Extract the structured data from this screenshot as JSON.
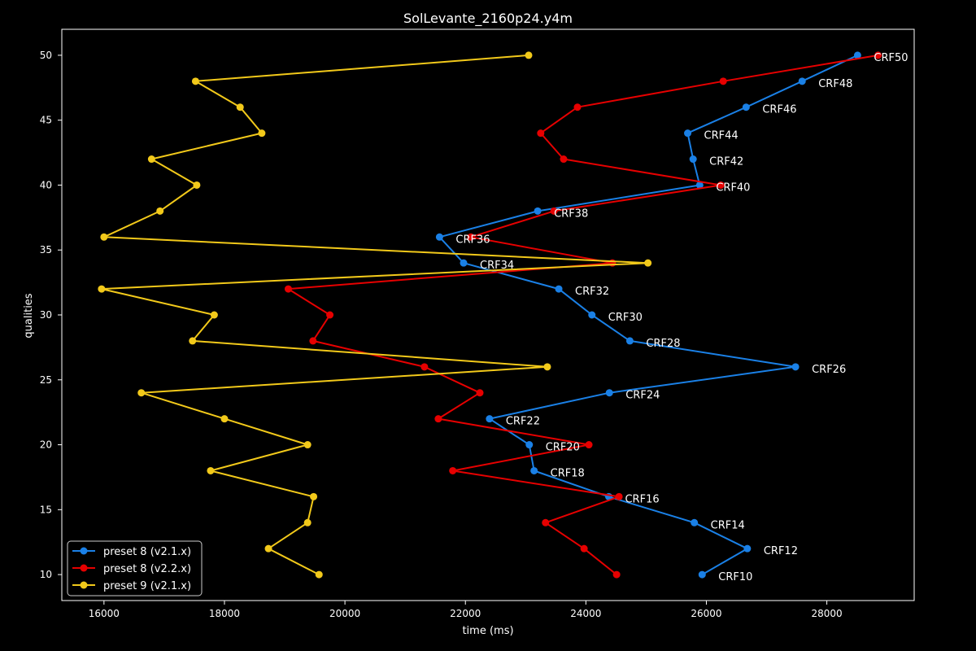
{
  "chart_data": {
    "type": "line",
    "title": "SolLevante_2160p24.y4m",
    "xlabel": "time (ms)",
    "ylabel": "qualities",
    "xlim": [
      15300,
      29450
    ],
    "ylim": [
      8,
      52
    ],
    "xticks": [
      16000,
      18000,
      20000,
      22000,
      24000,
      26000,
      28000
    ],
    "yticks": [
      10,
      15,
      20,
      25,
      30,
      35,
      40,
      45,
      50
    ],
    "grid": false,
    "legend_position": "bottom-left",
    "series": [
      {
        "name": "preset 8 (v2.1.x)",
        "color": "#1a80e6",
        "points": [
          [
            25930,
            10
          ],
          [
            26680,
            12
          ],
          [
            25800,
            14
          ],
          [
            24380,
            16
          ],
          [
            23140,
            18
          ],
          [
            23060,
            20
          ],
          [
            22400,
            22
          ],
          [
            24390,
            24
          ],
          [
            27480,
            26
          ],
          [
            24730,
            28
          ],
          [
            24100,
            30
          ],
          [
            23550,
            32
          ],
          [
            21970,
            34
          ],
          [
            21570,
            36
          ],
          [
            23200,
            38
          ],
          [
            25890,
            40
          ],
          [
            25780,
            42
          ],
          [
            25690,
            44
          ],
          [
            26660,
            46
          ],
          [
            27590,
            48
          ],
          [
            28510,
            50
          ]
        ]
      },
      {
        "name": "preset 8 (v2.2.x)",
        "color": "#e60000",
        "points": [
          [
            24510,
            10
          ],
          [
            23970,
            12
          ],
          [
            23330,
            14
          ],
          [
            24550,
            16
          ],
          [
            21790,
            18
          ],
          [
            24050,
            20
          ],
          [
            21550,
            22
          ],
          [
            22240,
            24
          ],
          [
            21320,
            26
          ],
          [
            19470,
            28
          ],
          [
            19750,
            30
          ],
          [
            19060,
            32
          ],
          [
            24440,
            34
          ],
          [
            22090,
            36
          ],
          [
            23470,
            38
          ],
          [
            26240,
            40
          ],
          [
            23630,
            42
          ],
          [
            23250,
            44
          ],
          [
            23860,
            46
          ],
          [
            26280,
            48
          ],
          [
            28850,
            50
          ]
        ]
      },
      {
        "name": "preset 9 (v2.1.x)",
        "color": "#f2c91a",
        "points": [
          [
            19570,
            10
          ],
          [
            18730,
            12
          ],
          [
            19380,
            14
          ],
          [
            19480,
            16
          ],
          [
            17770,
            18
          ],
          [
            19380,
            20
          ],
          [
            18000,
            22
          ],
          [
            16620,
            24
          ],
          [
            23360,
            26
          ],
          [
            17470,
            28
          ],
          [
            17830,
            30
          ],
          [
            15960,
            32
          ],
          [
            25030,
            34
          ],
          [
            16000,
            36
          ],
          [
            16930,
            38
          ],
          [
            17540,
            40
          ],
          [
            16790,
            42
          ],
          [
            18620,
            44
          ],
          [
            18260,
            46
          ],
          [
            17520,
            48
          ],
          [
            23050,
            50
          ]
        ]
      }
    ],
    "annotations": [
      "CRF10",
      "CRF12",
      "CRF14",
      "CRF16",
      "CRF18",
      "CRF20",
      "CRF22",
      "CRF24",
      "CRF26",
      "CRF28",
      "CRF30",
      "CRF32",
      "CRF34",
      "CRF36",
      "CRF38",
      "CRF40",
      "CRF42",
      "CRF44",
      "CRF46",
      "CRF48",
      "CRF50"
    ]
  }
}
